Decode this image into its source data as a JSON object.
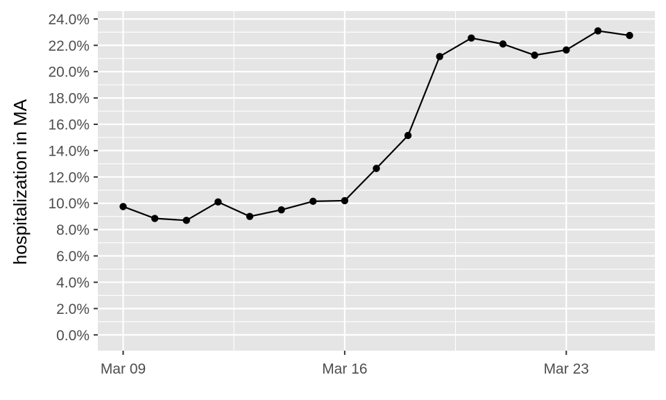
{
  "chart_data": {
    "type": "line",
    "title": "",
    "xlabel": "",
    "ylabel": "hospitalization in MA",
    "x": [
      "2020-03-09",
      "2020-03-10",
      "2020-03-11",
      "2020-03-12",
      "2020-03-13",
      "2020-03-14",
      "2020-03-15",
      "2020-03-16",
      "2020-03-17",
      "2020-03-18",
      "2020-03-19",
      "2020-03-20",
      "2020-03-21",
      "2020-03-22",
      "2020-03-23",
      "2020-03-24",
      "2020-03-25"
    ],
    "series": [
      {
        "values": [
          9.75,
          8.85,
          8.7,
          10.1,
          9.0,
          9.5,
          10.15,
          10.2,
          12.65,
          15.15,
          21.15,
          22.55,
          22.1,
          21.25,
          21.65,
          23.1,
          22.75
        ]
      }
    ],
    "xlim": [
      "2020-03-08.2",
      "2020-03-25.8"
    ],
    "ylim": [
      -1.2,
      24.6
    ],
    "x_ticks": [
      "2020-03-09",
      "2020-03-16",
      "2020-03-23"
    ],
    "x_tick_labels": [
      "Mar 09",
      "Mar 16",
      "Mar 23"
    ],
    "y_ticks": [
      0,
      2,
      4,
      6,
      8,
      10,
      12,
      14,
      16,
      18,
      20,
      22,
      24
    ],
    "y_tick_labels": [
      "0.0%",
      "2.0%",
      "4.0%",
      "6.0%",
      "8.0%",
      "10.0%",
      "12.0%",
      "14.0%",
      "16.0%",
      "18.0%",
      "20.0%",
      "22.0%",
      "24.0%"
    ],
    "grid": true,
    "legend": "none",
    "colors": {
      "panel": "#e5e5e5",
      "grid": "#ffffff",
      "line": "#000000",
      "tick_text": "#4d4d4d",
      "tick_mark": "#333333"
    }
  }
}
